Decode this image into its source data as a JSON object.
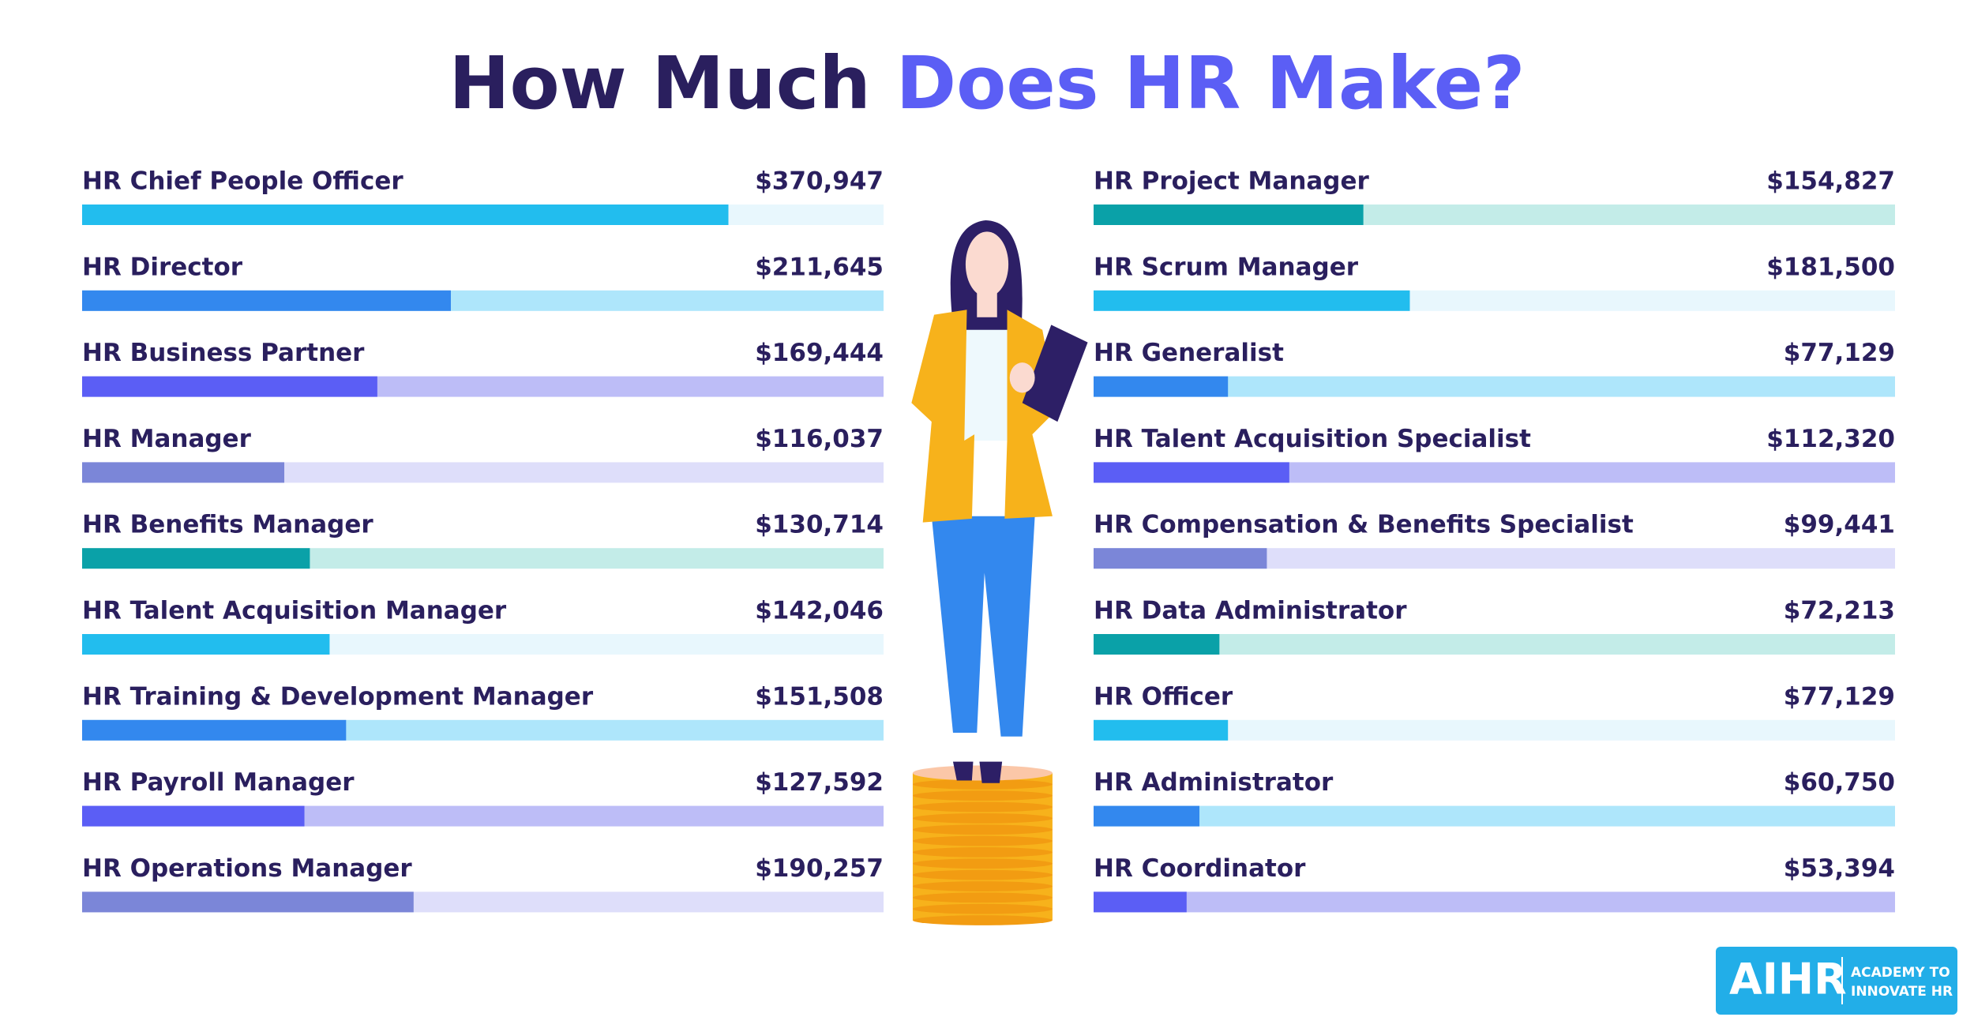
{
  "header": {
    "title_dark": "How Much",
    "title_accent": "Does HR Make?"
  },
  "logo": {
    "brand": "AIHR",
    "line_1": "ACADEMY TO",
    "line_2": "INNOVATE HR"
  },
  "chart_data": [
    {
      "type": "hbar",
      "categories": [
        "HR Chief People Officer",
        "HR Director",
        "HR Business Partner",
        "HR Manager",
        "HR Benefits Manager",
        "HR Talent Acquisition Manager",
        "HR Training & Development Manager",
        "HR Payroll Manager",
        "HR Operations Manager"
      ],
      "values": [
        370947,
        211645,
        169444,
        116037,
        130714,
        142046,
        151508,
        127592,
        190257
      ],
      "value_labels": [
        "$370,947",
        "$211,645",
        "$169,444",
        "$116,037",
        "$130,714",
        "$142,046",
        "$151,508",
        "$127,592",
        "$190,257"
      ],
      "colors": [
        "#22bdee",
        "#3388ee",
        "#5b5ef5",
        "#7b86d8",
        "#0aa1a8",
        "#22bdee",
        "#3388ee",
        "#5b5ef5",
        "#7b86d8"
      ],
      "track_colors": [
        "#e8f7fd",
        "#aee6fb",
        "#bdbdf7",
        "#dedefa",
        "#c3ece8",
        "#e8f7fd",
        "#aee6fb",
        "#bdbdf7",
        "#dedefa"
      ],
      "xlim": [
        0,
        460000
      ]
    },
    {
      "type": "hbar",
      "categories": [
        "HR Project Manager",
        "HR Scrum Manager",
        "HR Generalist",
        "HR Talent Acquisition Specialist",
        "HR Compensation & Benefits Specialist",
        "HR Data Administrator",
        "HR Officer",
        "HR Administrator",
        "HR Coordinator"
      ],
      "values": [
        154827,
        181500,
        77129,
        112320,
        99441,
        72213,
        77129,
        60750,
        53394
      ],
      "value_labels": [
        "$154,827",
        "$181,500",
        "$77,129",
        "$112,320",
        "$99,441",
        "$72,213",
        "$77,129",
        "$60,750",
        "$53,394"
      ],
      "colors": [
        "#0aa1a8",
        "#22bdee",
        "#3388ee",
        "#5b5ef5",
        "#7b86d8",
        "#0aa1a8",
        "#22bdee",
        "#3388ee",
        "#5b5ef5"
      ],
      "track_colors": [
        "#c3ece8",
        "#e8f7fd",
        "#aee6fb",
        "#bdbdf7",
        "#dedefa",
        "#c3ece8",
        "#e8f7fd",
        "#aee6fb",
        "#bdbdf7"
      ],
      "xlim": [
        0,
        460000
      ]
    }
  ]
}
